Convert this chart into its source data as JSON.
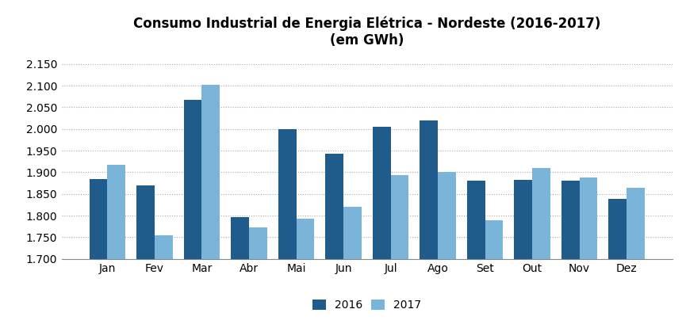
{
  "title_line1": "Consumo Industrial de Energia Elétrica - Nordeste (2016-2017)",
  "title_line2": "(em GWh)",
  "months": [
    "Jan",
    "Fev",
    "Mar",
    "Abr",
    "Mai",
    "Jun",
    "Jul",
    "Ago",
    "Set",
    "Out",
    "Nov",
    "Dez"
  ],
  "values_2016": [
    1.885,
    1.87,
    2.068,
    1.797,
    2.0,
    1.943,
    2.005,
    2.02,
    1.88,
    1.882,
    1.88,
    1.838
  ],
  "values_2017": [
    1.918,
    1.754,
    2.102,
    1.772,
    1.793,
    1.82,
    1.893,
    1.9,
    1.79,
    1.91,
    1.888,
    1.865
  ],
  "color_2016": "#1F5C8B",
  "color_2017": "#7AB4D8",
  "ylim_min": 1.7,
  "ylim_max": 2.175,
  "yticks": [
    1.7,
    1.75,
    1.8,
    1.85,
    1.9,
    1.95,
    2.0,
    2.05,
    2.1,
    2.15
  ],
  "legend_2016": "2016",
  "legend_2017": "2017",
  "background_color": "#FFFFFF",
  "grid_color": "#AAAAAA",
  "bar_width": 0.38
}
